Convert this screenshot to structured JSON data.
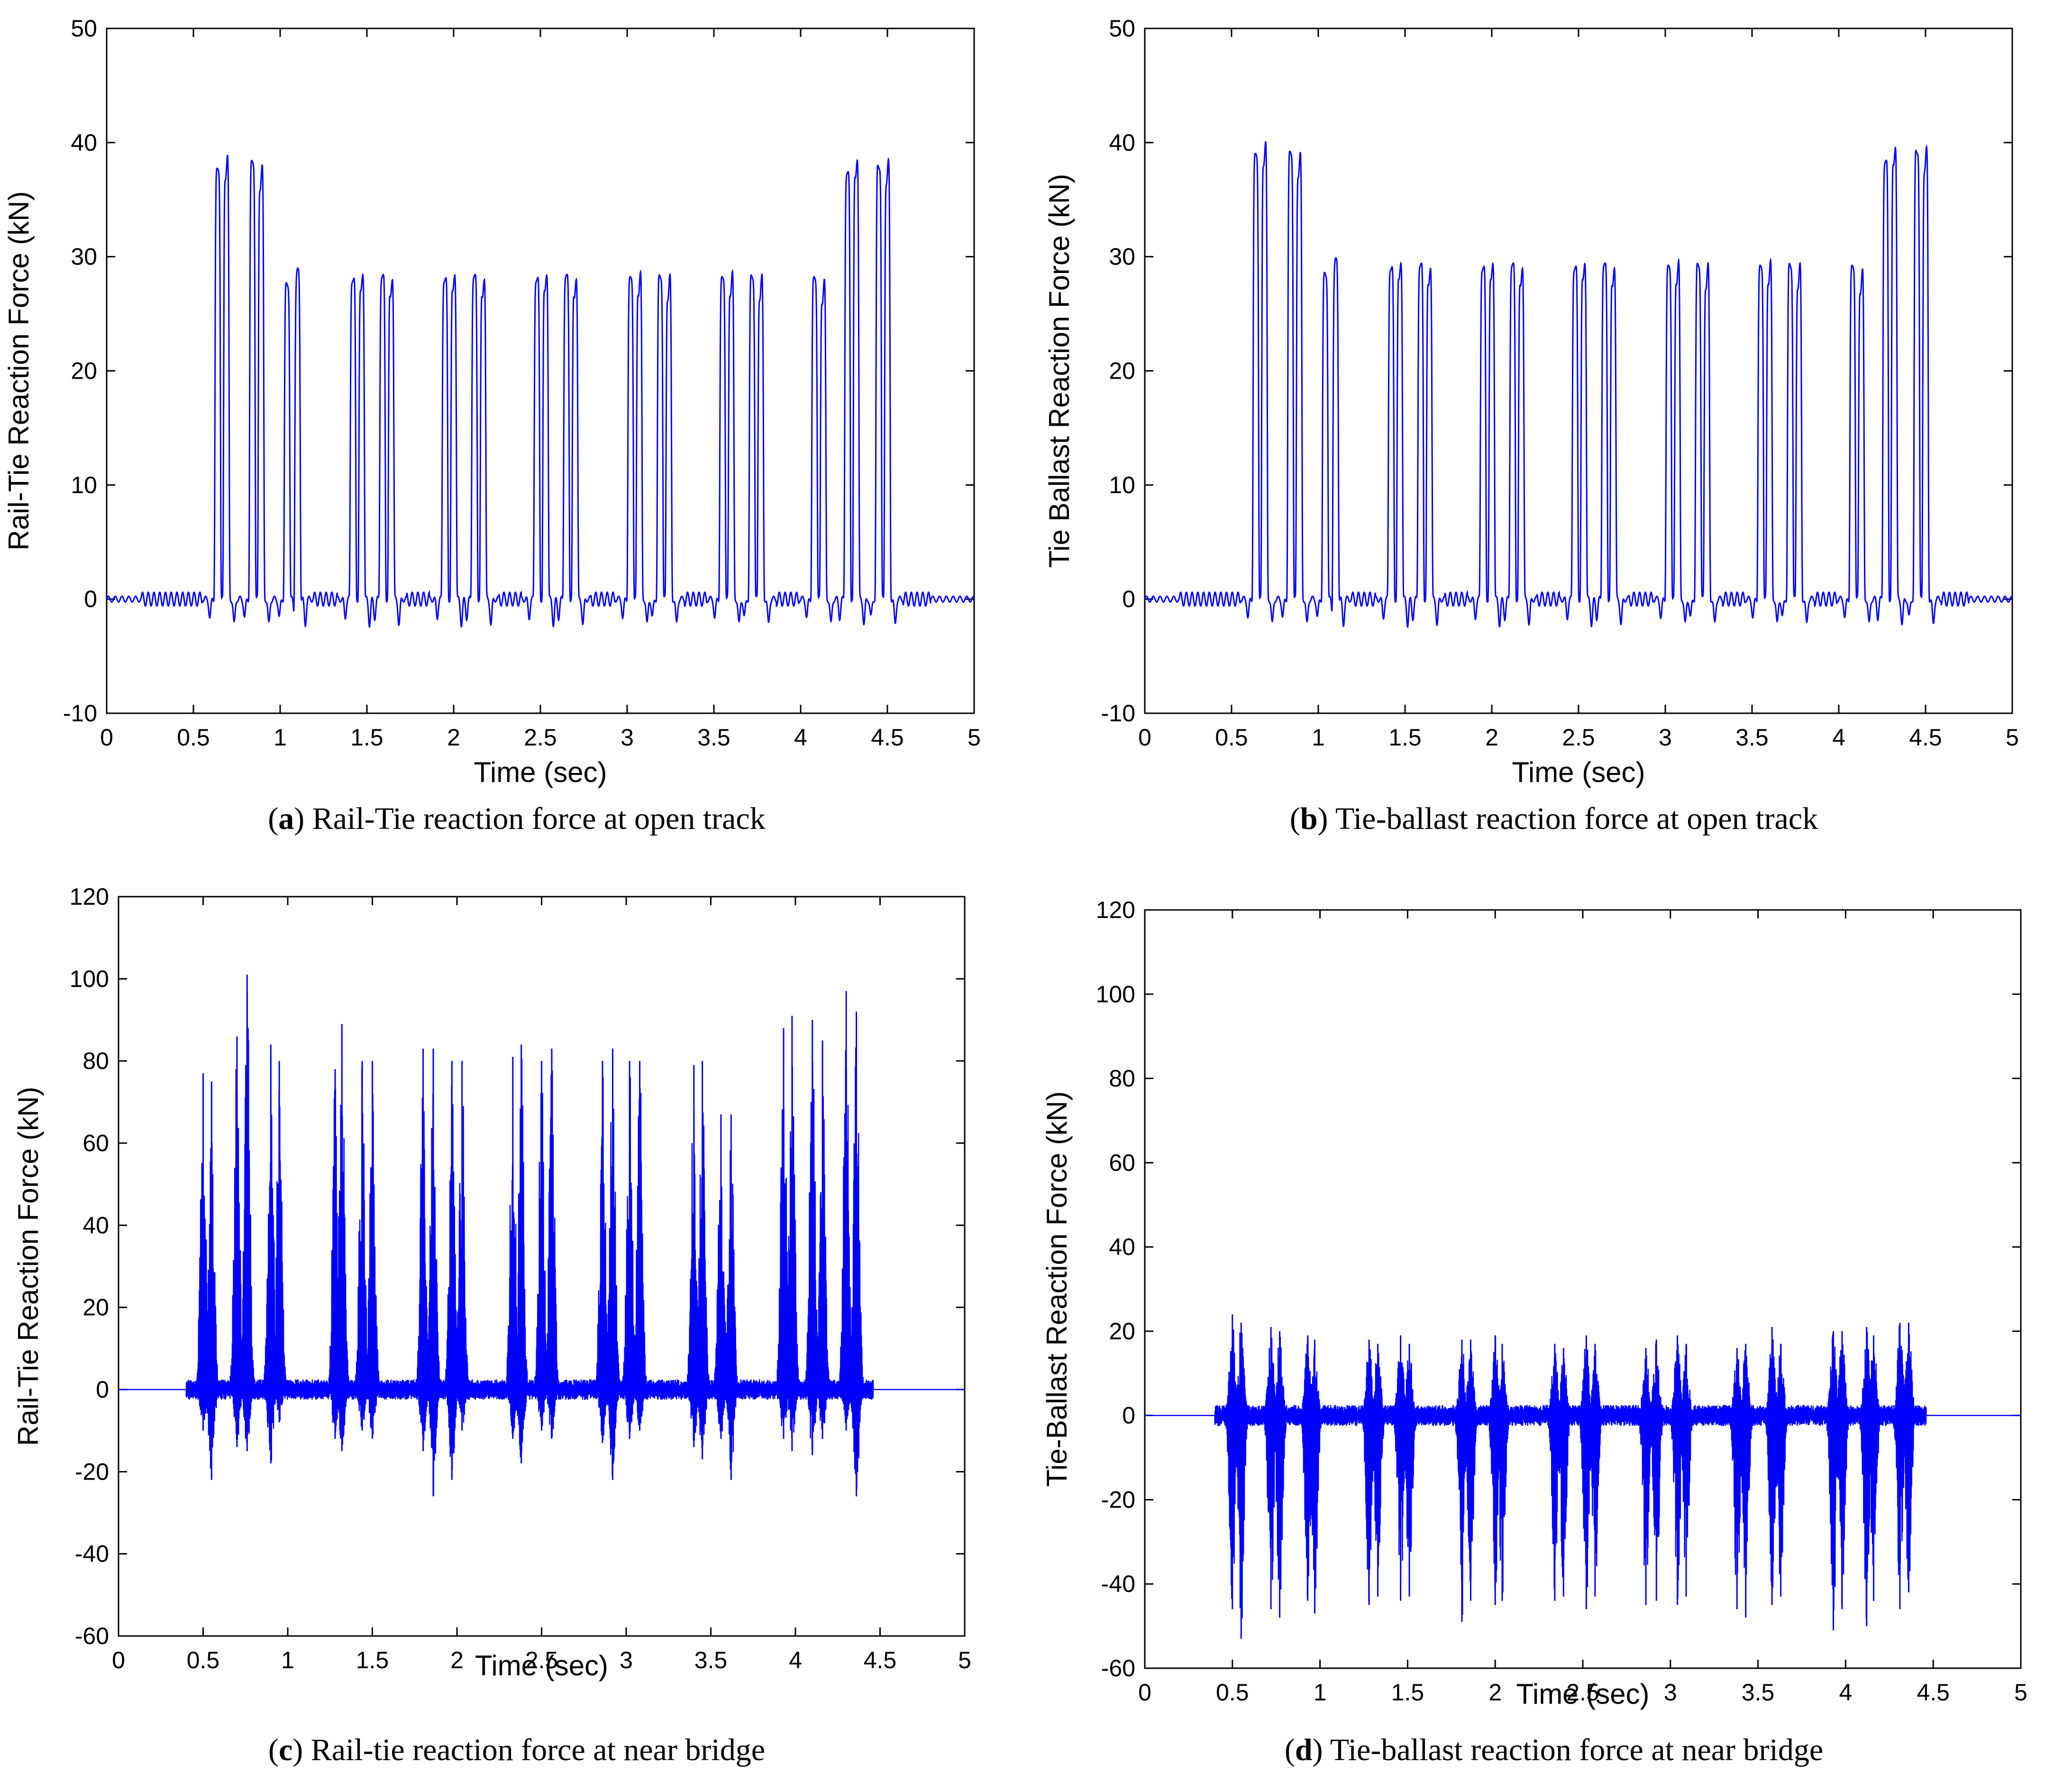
{
  "figure": {
    "colors": {
      "series": "#0000ff",
      "axis": "#000000",
      "background": "#ffffff"
    }
  },
  "chart_data": [
    {
      "id": "a",
      "type": "line",
      "caption_letter": "a",
      "caption_text": " Rail-Tie reaction force at open track",
      "xlabel": "Time (sec)",
      "ylabel": "Rail-Tie Reaction Force (kN)",
      "xlim": [
        0,
        5
      ],
      "ylim": [
        -10,
        50
      ],
      "xticks": [
        0,
        0.5,
        1,
        1.5,
        2,
        2.5,
        3,
        3.5,
        4,
        4.5,
        5
      ],
      "xtick_labels": [
        "0",
        "0.5",
        "1",
        "1.5",
        "2",
        "2.5",
        "3",
        "3.5",
        "4",
        "4.5",
        "5"
      ],
      "yticks": [
        -10,
        0,
        10,
        20,
        30,
        40,
        50
      ],
      "ytick_labels": [
        "-10",
        "0",
        "10",
        "20",
        "30",
        "40",
        "50"
      ],
      "series": [
        {
          "name": "Rail-Tie reaction force",
          "pulses": [
            {
              "t": 0.64,
              "peak": 37.5
            },
            {
              "t": 0.69,
              "peak": 39.2
            },
            {
              "t": 0.84,
              "peak": 38.2
            },
            {
              "t": 0.89,
              "peak": 38.3
            },
            {
              "t": 1.04,
              "peak": 27.5
            },
            {
              "t": 1.1,
              "peak": 28.8
            },
            {
              "t": 1.42,
              "peak": 28.0
            },
            {
              "t": 1.47,
              "peak": 29.0
            },
            {
              "t": 1.59,
              "peak": 28.2
            },
            {
              "t": 1.64,
              "peak": 28.6
            },
            {
              "t": 1.95,
              "peak": 28.0
            },
            {
              "t": 2.0,
              "peak": 29.0
            },
            {
              "t": 2.12,
              "peak": 28.2
            },
            {
              "t": 2.17,
              "peak": 28.6
            },
            {
              "t": 2.48,
              "peak": 28.0
            },
            {
              "t": 2.53,
              "peak": 29.0
            },
            {
              "t": 2.65,
              "peak": 28.2
            },
            {
              "t": 2.7,
              "peak": 28.6
            },
            {
              "t": 3.02,
              "peak": 28.0
            },
            {
              "t": 3.07,
              "peak": 29.0
            },
            {
              "t": 3.19,
              "peak": 28.2
            },
            {
              "t": 3.24,
              "peak": 28.6
            },
            {
              "t": 3.55,
              "peak": 28.0
            },
            {
              "t": 3.6,
              "peak": 29.0
            },
            {
              "t": 3.72,
              "peak": 28.2
            },
            {
              "t": 3.77,
              "peak": 28.6
            },
            {
              "t": 4.08,
              "peak": 28.0
            },
            {
              "t": 4.13,
              "peak": 28.3
            },
            {
              "t": 4.27,
              "peak": 37.2
            },
            {
              "t": 4.32,
              "peak": 39.1
            },
            {
              "t": 4.45,
              "peak": 37.9
            },
            {
              "t": 4.5,
              "peak": 38.7
            }
          ]
        }
      ]
    },
    {
      "id": "b",
      "type": "line",
      "caption_letter": "b",
      "caption_text": " Tie-ballast reaction force at open track",
      "xlabel": "Time (sec)",
      "ylabel": "Tie Ballast Reaction Force (kN)",
      "xlim": [
        0,
        5
      ],
      "ylim": [
        -10,
        50
      ],
      "xticks": [
        0,
        0.5,
        1,
        1.5,
        2,
        2.5,
        3,
        3.5,
        4,
        4.5,
        5
      ],
      "xtick_labels": [
        "0",
        "0.5",
        "1",
        "1.5",
        "2",
        "2.5",
        "3",
        "3.5",
        "4",
        "4.5",
        "5"
      ],
      "yticks": [
        -10,
        0,
        10,
        20,
        30,
        40,
        50
      ],
      "ytick_labels": [
        "-10",
        "0",
        "10",
        "20",
        "30",
        "40",
        "50"
      ],
      "series": [
        {
          "name": "Tie-ballast reaction force",
          "pulses": [
            {
              "t": 0.64,
              "peak": 38.8
            },
            {
              "t": 0.69,
              "peak": 40.4
            },
            {
              "t": 0.84,
              "peak": 39.0
            },
            {
              "t": 0.89,
              "peak": 39.4
            },
            {
              "t": 1.04,
              "peak": 28.4
            },
            {
              "t": 1.1,
              "peak": 29.7
            },
            {
              "t": 1.42,
              "peak": 29.0
            },
            {
              "t": 1.47,
              "peak": 30.0
            },
            {
              "t": 1.59,
              "peak": 29.2
            },
            {
              "t": 1.64,
              "peak": 29.6
            },
            {
              "t": 1.95,
              "peak": 29.0
            },
            {
              "t": 2.0,
              "peak": 30.0
            },
            {
              "t": 2.12,
              "peak": 29.2
            },
            {
              "t": 2.17,
              "peak": 29.6
            },
            {
              "t": 2.48,
              "peak": 29.0
            },
            {
              "t": 2.53,
              "peak": 30.0
            },
            {
              "t": 2.65,
              "peak": 29.2
            },
            {
              "t": 2.7,
              "peak": 29.6
            },
            {
              "t": 3.02,
              "peak": 29.0
            },
            {
              "t": 3.07,
              "peak": 30.0
            },
            {
              "t": 3.19,
              "peak": 29.2
            },
            {
              "t": 3.24,
              "peak": 29.6
            },
            {
              "t": 3.55,
              "peak": 29.0
            },
            {
              "t": 3.6,
              "peak": 30.0
            },
            {
              "t": 3.72,
              "peak": 29.2
            },
            {
              "t": 3.77,
              "peak": 29.6
            },
            {
              "t": 4.08,
              "peak": 29.0
            },
            {
              "t": 4.13,
              "peak": 29.2
            },
            {
              "t": 4.27,
              "peak": 38.2
            },
            {
              "t": 4.32,
              "peak": 40.2
            },
            {
              "t": 4.45,
              "peak": 39.2
            },
            {
              "t": 4.5,
              "peak": 39.8
            }
          ]
        }
      ]
    },
    {
      "id": "c",
      "type": "line",
      "caption_letter": "c",
      "caption_text": " Rail-tie reaction force at near bridge",
      "xlabel": "Time (sec)",
      "ylabel": "Rail-Tie Reaction Force (kN)",
      "xlim": [
        0,
        5
      ],
      "ylim": [
        -60,
        120
      ],
      "xticks": [
        0,
        0.5,
        1,
        1.5,
        2,
        2.5,
        3,
        3.5,
        4,
        4.5,
        5
      ],
      "xtick_labels": [
        "0",
        "0.5",
        "1",
        "1.5",
        "2",
        "2.5",
        "3",
        "3.5",
        "4",
        "4.5",
        "5"
      ],
      "yticks": [
        -60,
        -40,
        -20,
        0,
        20,
        40,
        60,
        80,
        100,
        120
      ],
      "ytick_labels": [
        "-60",
        "-40",
        "-20",
        "0",
        "20",
        "40",
        "60",
        "80",
        "100",
        "120"
      ],
      "series": [
        {
          "name": "Rail-tie reaction force (near bridge)",
          "bursts": [
            {
              "t": 0.5,
              "max": 77,
              "min": -10
            },
            {
              "t": 0.55,
              "max": 75,
              "min": -22
            },
            {
              "t": 0.7,
              "max": 86,
              "min": -14
            },
            {
              "t": 0.76,
              "max": 101,
              "min": -15
            },
            {
              "t": 0.9,
              "max": 84,
              "min": -18
            },
            {
              "t": 0.95,
              "max": 80,
              "min": -8
            },
            {
              "t": 1.28,
              "max": 78,
              "min": -12
            },
            {
              "t": 1.32,
              "max": 89,
              "min": -15
            },
            {
              "t": 1.44,
              "max": 80,
              "min": -10
            },
            {
              "t": 1.5,
              "max": 80,
              "min": -12
            },
            {
              "t": 1.8,
              "max": 83,
              "min": -15
            },
            {
              "t": 1.86,
              "max": 83,
              "min": -26
            },
            {
              "t": 1.97,
              "max": 80,
              "min": -22
            },
            {
              "t": 2.03,
              "max": 80,
              "min": -10
            },
            {
              "t": 2.33,
              "max": 81,
              "min": -12
            },
            {
              "t": 2.38,
              "max": 84,
              "min": -18
            },
            {
              "t": 2.5,
              "max": 80,
              "min": -10
            },
            {
              "t": 2.56,
              "max": 83,
              "min": -12
            },
            {
              "t": 2.86,
              "max": 80,
              "min": -13
            },
            {
              "t": 2.92,
              "max": 83,
              "min": -22
            },
            {
              "t": 3.02,
              "max": 80,
              "min": -12
            },
            {
              "t": 3.08,
              "max": 80,
              "min": -10
            },
            {
              "t": 3.4,
              "max": 79,
              "min": -14
            },
            {
              "t": 3.45,
              "max": 80,
              "min": -17
            },
            {
              "t": 3.56,
              "max": 67,
              "min": -12
            },
            {
              "t": 3.62,
              "max": 67,
              "min": -22
            },
            {
              "t": 3.93,
              "max": 88,
              "min": -12
            },
            {
              "t": 3.98,
              "max": 91,
              "min": -15
            },
            {
              "t": 4.1,
              "max": 90,
              "min": -16
            },
            {
              "t": 4.16,
              "max": 85,
              "min": -12
            },
            {
              "t": 4.3,
              "max": 97,
              "min": -10
            },
            {
              "t": 4.36,
              "max": 92,
              "min": -26
            }
          ]
        }
      ]
    },
    {
      "id": "d",
      "type": "line",
      "caption_letter": "d",
      "caption_text": " Tie-ballast reaction force at near bridge",
      "xlabel": "Time (sec)",
      "ylabel": "Tie-Ballast Reaction Force (kN)",
      "xlim": [
        0,
        5
      ],
      "ylim": [
        -60,
        120
      ],
      "xticks": [
        0,
        0.5,
        1,
        1.5,
        2,
        2.5,
        3,
        3.5,
        4,
        4.5,
        5
      ],
      "xtick_labels": [
        "0",
        "0.5",
        "1",
        "1.5",
        "2",
        "2.5",
        "3",
        "3.5",
        "4",
        "4.5",
        "5"
      ],
      "yticks": [
        -60,
        -40,
        -20,
        0,
        20,
        40,
        60,
        80,
        100,
        120
      ],
      "ytick_labels": [
        "-60",
        "-40",
        "-20",
        "0",
        "20",
        "40",
        "60",
        "80",
        "100",
        "120"
      ],
      "series": [
        {
          "name": "Tie-ballast reaction force (near bridge)",
          "bursts": [
            {
              "t": 0.5,
              "max": 24,
              "min": -46
            },
            {
              "t": 0.55,
              "max": 22,
              "min": -53
            },
            {
              "t": 0.72,
              "max": 21,
              "min": -46
            },
            {
              "t": 0.77,
              "max": 20,
              "min": -48
            },
            {
              "t": 0.93,
              "max": 19,
              "min": -44
            },
            {
              "t": 0.97,
              "max": 18,
              "min": -47
            },
            {
              "t": 1.28,
              "max": 18,
              "min": -45
            },
            {
              "t": 1.33,
              "max": 17,
              "min": -43
            },
            {
              "t": 1.46,
              "max": 19,
              "min": -44
            },
            {
              "t": 1.51,
              "max": 17,
              "min": -43
            },
            {
              "t": 1.81,
              "max": 18,
              "min": -49
            },
            {
              "t": 1.86,
              "max": 18,
              "min": -44
            },
            {
              "t": 2.0,
              "max": 19,
              "min": -45
            },
            {
              "t": 2.04,
              "max": 17,
              "min": -44
            },
            {
              "t": 2.34,
              "max": 17,
              "min": -44
            },
            {
              "t": 2.39,
              "max": 16,
              "min": -43
            },
            {
              "t": 2.52,
              "max": 19,
              "min": -46
            },
            {
              "t": 2.57,
              "max": 17,
              "min": -43
            },
            {
              "t": 2.86,
              "max": 16,
              "min": -45
            },
            {
              "t": 2.92,
              "max": 18,
              "min": -44
            },
            {
              "t": 3.04,
              "max": 19,
              "min": -45
            },
            {
              "t": 3.09,
              "max": 17,
              "min": -43
            },
            {
              "t": 3.38,
              "max": 16,
              "min": -46
            },
            {
              "t": 3.43,
              "max": 17,
              "min": -48
            },
            {
              "t": 3.58,
              "max": 21,
              "min": -45
            },
            {
              "t": 3.63,
              "max": 17,
              "min": -43
            },
            {
              "t": 3.93,
              "max": 20,
              "min": -51
            },
            {
              "t": 3.98,
              "max": 20,
              "min": -46
            },
            {
              "t": 4.12,
              "max": 21,
              "min": -50
            },
            {
              "t": 4.16,
              "max": 19,
              "min": -44
            },
            {
              "t": 4.31,
              "max": 22,
              "min": -46
            },
            {
              "t": 4.36,
              "max": 22,
              "min": -42
            }
          ]
        }
      ]
    }
  ]
}
